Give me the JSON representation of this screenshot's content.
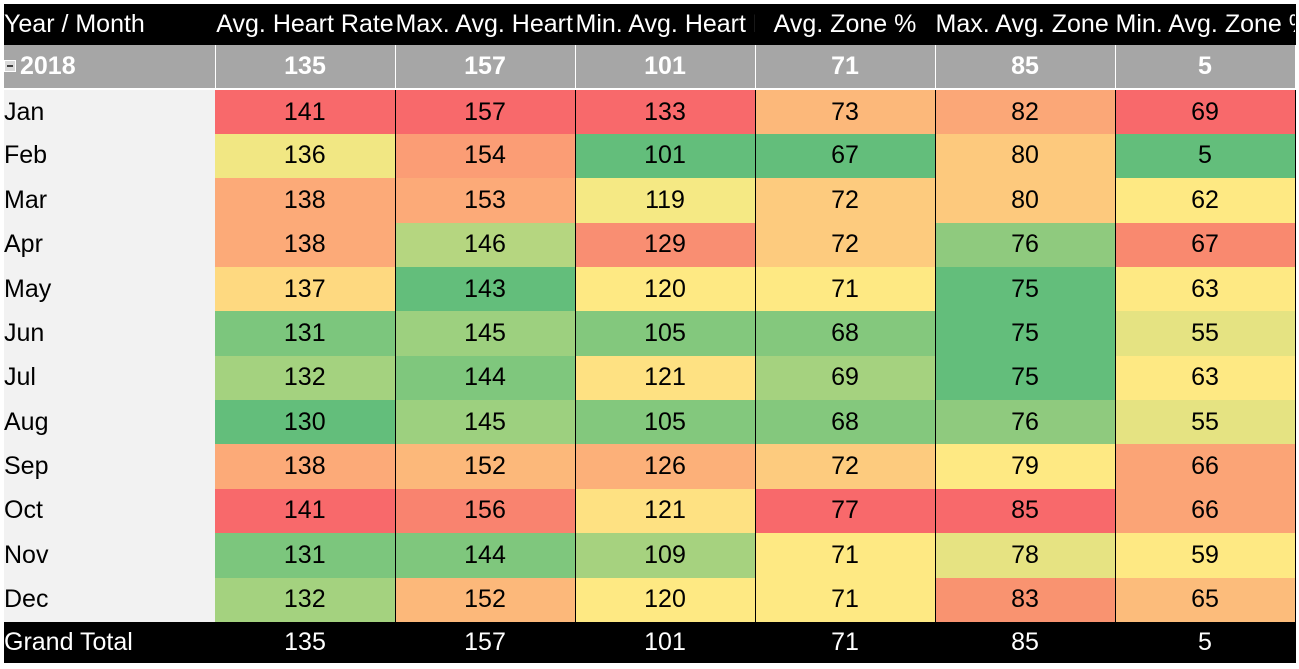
{
  "table": {
    "columns": [
      "Year / Month",
      "Avg. Heart Rate",
      "Max. Avg. Heart Rate",
      "Min. Avg. Heart Rate",
      "Avg. Zone %",
      "Max. Avg. Zone %",
      "Min. Avg. Zone %"
    ],
    "year": {
      "label": "2018",
      "values": [
        "135",
        "157",
        "101",
        "71",
        "85",
        "5"
      ]
    },
    "rows": [
      {
        "month": "Jan",
        "values": [
          "141",
          "157",
          "133",
          "73",
          "82",
          "69"
        ],
        "colors": [
          "#f8696b",
          "#f8696b",
          "#f8696b",
          "#fcb87a",
          "#fba777",
          "#f8696b"
        ]
      },
      {
        "month": "Feb",
        "values": [
          "136",
          "154",
          "101",
          "67",
          "80",
          "5"
        ],
        "colors": [
          "#f1e783",
          "#fb9d75",
          "#63be7b",
          "#63be7b",
          "#fdc97d",
          "#63be7b"
        ]
      },
      {
        "month": "Mar",
        "values": [
          "138",
          "153",
          "119",
          "72",
          "80",
          "62"
        ],
        "colors": [
          "#fcaa78",
          "#fcaa78",
          "#f5e984",
          "#fdcb7e",
          "#fdc97d",
          "#fee983"
        ]
      },
      {
        "month": "Apr",
        "values": [
          "138",
          "146",
          "129",
          "72",
          "76",
          "67"
        ],
        "colors": [
          "#fcaa78",
          "#b5d680",
          "#f98e72",
          "#fdcb7e",
          "#8fca7e",
          "#f9896f"
        ]
      },
      {
        "month": "May",
        "values": [
          "137",
          "143",
          "120",
          "71",
          "75",
          "63"
        ],
        "colors": [
          "#fed980",
          "#63be7b",
          "#fee983",
          "#fee983",
          "#63be7b",
          "#fee983"
        ]
      },
      {
        "month": "Jun",
        "values": [
          "131",
          "145",
          "105",
          "68",
          "75",
          "55"
        ],
        "colors": [
          "#7cc67d",
          "#9dd07f",
          "#83c87d",
          "#84c87d",
          "#63be7b",
          "#e5e382"
        ]
      },
      {
        "month": "Jul",
        "values": [
          "132",
          "144",
          "121",
          "69",
          "75",
          "63"
        ],
        "colors": [
          "#a4d27f",
          "#7fc77d",
          "#fee182",
          "#a5d27f",
          "#63be7b",
          "#fee983"
        ]
      },
      {
        "month": "Aug",
        "values": [
          "130",
          "145",
          "105",
          "68",
          "76",
          "55"
        ],
        "colors": [
          "#63be7b",
          "#9dd07f",
          "#83c87d",
          "#84c87d",
          "#8fca7e",
          "#e5e382"
        ]
      },
      {
        "month": "Sep",
        "values": [
          "138",
          "152",
          "126",
          "72",
          "79",
          "66"
        ],
        "colors": [
          "#fcaa78",
          "#fcb87a",
          "#fcb079",
          "#fdcb7e",
          "#fee983",
          "#fba476"
        ]
      },
      {
        "month": "Oct",
        "values": [
          "141",
          "156",
          "121",
          "77",
          "85",
          "66"
        ],
        "colors": [
          "#f8696b",
          "#f9836f",
          "#fee182",
          "#f8696b",
          "#f8696b",
          "#fba476"
        ]
      },
      {
        "month": "Nov",
        "values": [
          "131",
          "144",
          "109",
          "71",
          "78",
          "59"
        ],
        "colors": [
          "#7cc67d",
          "#7fc77d",
          "#a6d27f",
          "#fee983",
          "#e6e382",
          "#fee983"
        ]
      },
      {
        "month": "Dec",
        "values": [
          "132",
          "152",
          "120",
          "71",
          "83",
          "65"
        ],
        "colors": [
          "#a4d27f",
          "#fcb87a",
          "#fee983",
          "#fee983",
          "#f99370",
          "#fcbc7b"
        ]
      }
    ],
    "grand_total": {
      "label": "Grand Total",
      "values": [
        "135",
        "157",
        "101",
        "71",
        "85",
        "5"
      ]
    }
  }
}
